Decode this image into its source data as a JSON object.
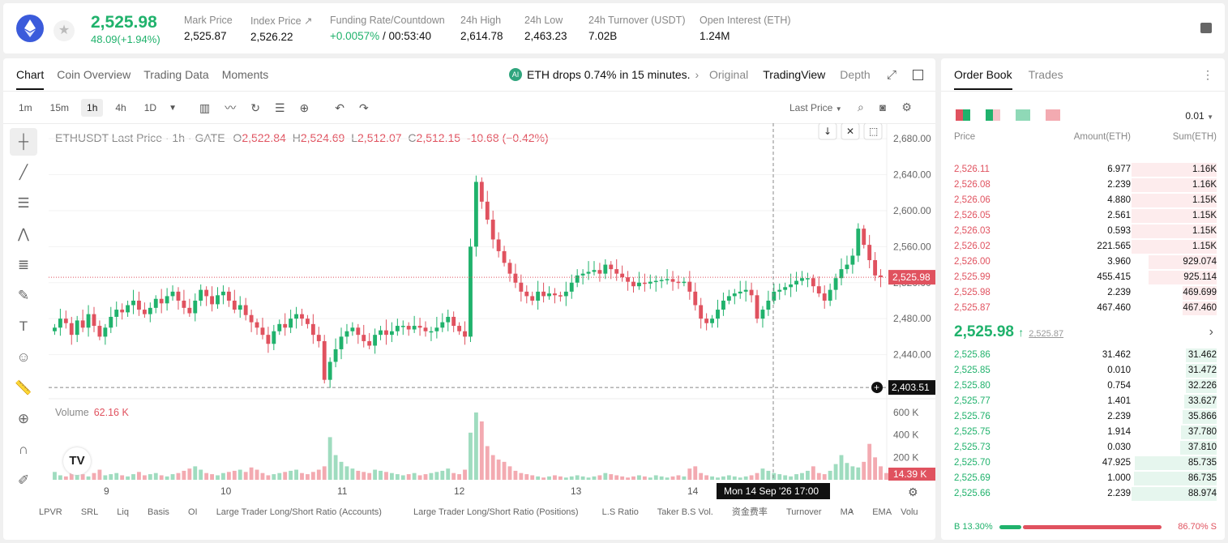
{
  "header": {
    "last_price": "2,525.98",
    "change": "48.09(+1.94%)",
    "stats": [
      {
        "label": "Mark Price",
        "value": "2,525.87"
      },
      {
        "label": "Index Price ↗",
        "value": "2,526.22"
      },
      {
        "label": "Funding Rate/Countdown",
        "value": "+0.0057%",
        "extra": " / 00:53:40"
      },
      {
        "label": "24h High",
        "value": "2,614.78"
      },
      {
        "label": "24h Low",
        "value": "2,463.23"
      },
      {
        "label": "24h Turnover (USDT)",
        "value": "7.02B"
      },
      {
        "label": "Open Interest (ETH)",
        "value": "1.24M"
      }
    ]
  },
  "chart_tabs": [
    "Chart",
    "Coin Overview",
    "Trading Data",
    "Moments"
  ],
  "news": "ETH drops 0.74% in 15 minutes.",
  "view_tabs": [
    "Original",
    "TradingView",
    "Depth"
  ],
  "timeframes": [
    "1m",
    "15m",
    "1h",
    "4h",
    "1D"
  ],
  "price_type": "Last Price",
  "ohlc": {
    "symbol": "ETHUSDT Last Price · 1h · GATE",
    "o": "2,522.84",
    "h": "2,524.69",
    "l": "2,512.07",
    "c": "2,512.15",
    "chg": "-10.68 (−0.42%)"
  },
  "volume": {
    "label": "Volume",
    "value": "62.16 K",
    "last": "14.39 K"
  },
  "crosshair": {
    "price": "2,403.51",
    "time": "Mon 14 Sep '26   17:00"
  },
  "current_price_label": "2,525.98",
  "indicators": [
    "LPVR",
    "SRL",
    "Liq",
    "Basis",
    "OI",
    "Large Trader Long/Short Ratio (Accounts)",
    "Large Trader Long/Short Ratio (Positions)",
    "L.S Ratio",
    "Taker B.S Vol.",
    "资金费率",
    "Turnover",
    "MA",
    "EMA",
    "Volu"
  ],
  "chart_data": {
    "type": "candlestick",
    "y_ticks": [
      "2,680.00",
      "2,640.00",
      "2,600.00",
      "2,560.00",
      "2,520.00",
      "2,480.00",
      "2,440.00"
    ],
    "vol_ticks": [
      "600 K",
      "400 K",
      "200 K"
    ],
    "x_ticks": [
      "9",
      "10",
      "11",
      "12",
      "13",
      "14"
    ],
    "ylim": [
      2400,
      2690
    ],
    "closes": [
      2470,
      2480,
      2475,
      2462,
      2478,
      2470,
      2485,
      2472,
      2460,
      2470,
      2482,
      2490,
      2487,
      2495,
      2500,
      2490,
      2485,
      2492,
      2502,
      2497,
      2505,
      2510,
      2500,
      2492,
      2486,
      2500,
      2512,
      2505,
      2496,
      2506,
      2510,
      2500,
      2490,
      2495,
      2484,
      2476,
      2470,
      2462,
      2452,
      2466,
      2474,
      2470,
      2480,
      2485,
      2480,
      2474,
      2462,
      2455,
      2412,
      2432,
      2446,
      2460,
      2466,
      2470,
      2462,
      2455,
      2450,
      2462,
      2467,
      2462,
      2466,
      2472,
      2472,
      2468,
      2472,
      2470,
      2466,
      2466,
      2470,
      2476,
      2482,
      2472,
      2466,
      2460,
      2560,
      2632,
      2610,
      2590,
      2568,
      2555,
      2542,
      2530,
      2520,
      2510,
      2505,
      2500,
      2510,
      2505,
      2508,
      2506,
      2505,
      2510,
      2520,
      2528,
      2530,
      2532,
      2534,
      2530,
      2540,
      2535,
      2530,
      2526,
      2521,
      2516,
      2520,
      2519,
      2521,
      2522,
      2523,
      2524,
      2521,
      2520,
      2521,
      2510,
      2495,
      2480,
      2475,
      2480,
      2490,
      2500,
      2505,
      2508,
      2510,
      2512,
      2506,
      2480,
      2490,
      2500,
      2510,
      2512,
      2515,
      2518,
      2522,
      2525,
      2525,
      2516,
      2508,
      2500,
      2512,
      2525,
      2535,
      2540,
      2550,
      2580,
      2562,
      2545,
      2528,
      2526
    ],
    "volumes": [
      70,
      40,
      30,
      60,
      80,
      50,
      30,
      60,
      90,
      40,
      50,
      60,
      40,
      30,
      50,
      70,
      40,
      50,
      60,
      40,
      30,
      50,
      60,
      80,
      100,
      120,
      90,
      60,
      50,
      40,
      60,
      70,
      80,
      90,
      70,
      110,
      90,
      60,
      40,
      50,
      60,
      70,
      80,
      90,
      60,
      50,
      70,
      90,
      120,
      380,
      220,
      160,
      120,
      100,
      80,
      70,
      60,
      90,
      80,
      70,
      60,
      50,
      40,
      50,
      60,
      40,
      50,
      60,
      70,
      80,
      100,
      60,
      50,
      90,
      420,
      600,
      520,
      300,
      220,
      180,
      160,
      120,
      80,
      60,
      50,
      40,
      30,
      20,
      30,
      40,
      30,
      20,
      30,
      40,
      30,
      20,
      30,
      40,
      60,
      50,
      40,
      30,
      20,
      30,
      40,
      30,
      20,
      40,
      30,
      20,
      30,
      40,
      30,
      100,
      120,
      60,
      40,
      30,
      20,
      30,
      40,
      30,
      20,
      30,
      40,
      60,
      100,
      80,
      60,
      50,
      40,
      30,
      50,
      60,
      80,
      120,
      60,
      50,
      80,
      140,
      220,
      150,
      120,
      110,
      160,
      320,
      200,
      120,
      60
    ]
  },
  "orderbook": {
    "tabs": [
      "Order Book",
      "Trades"
    ],
    "precision": "0.01",
    "headers": [
      "Price",
      "Amount(ETH)",
      "Sum(ETH)"
    ],
    "asks": [
      [
        "2,526.11",
        "6.977",
        "1.16K"
      ],
      [
        "2,526.08",
        "2.239",
        "1.16K"
      ],
      [
        "2,526.06",
        "4.880",
        "1.15K"
      ],
      [
        "2,526.05",
        "2.561",
        "1.15K"
      ],
      [
        "2,526.03",
        "0.593",
        "1.15K"
      ],
      [
        "2,526.02",
        "221.565",
        "1.15K"
      ],
      [
        "2,526.00",
        "3.960",
        "929.074"
      ],
      [
        "2,525.99",
        "455.415",
        "925.114"
      ],
      [
        "2,525.98",
        "2.239",
        "469.699"
      ],
      [
        "2,525.87",
        "467.460",
        "467.460"
      ]
    ],
    "ask_fill": [
      1,
      1,
      1,
      1,
      1,
      1,
      0.8,
      0.8,
      0.4,
      0.4
    ],
    "mid_price": "2,525.98",
    "mid_mark": "2,525.87",
    "bids": [
      [
        "2,525.86",
        "31.462",
        "31.462"
      ],
      [
        "2,525.85",
        "0.010",
        "31.472"
      ],
      [
        "2,525.80",
        "0.754",
        "32.226"
      ],
      [
        "2,525.77",
        "1.401",
        "33.627"
      ],
      [
        "2,525.76",
        "2.239",
        "35.866"
      ],
      [
        "2,525.75",
        "1.914",
        "37.780"
      ],
      [
        "2,525.73",
        "0.030",
        "37.810"
      ],
      [
        "2,525.70",
        "47.925",
        "85.735"
      ],
      [
        "2,525.69",
        "1.000",
        "86.735"
      ],
      [
        "2,525.66",
        "2.239",
        "88.974"
      ]
    ],
    "bid_fill": [
      0.36,
      0.36,
      0.36,
      0.38,
      0.4,
      0.42,
      0.43,
      0.96,
      0.97,
      1
    ],
    "buy_ratio": "B 13.30%",
    "sell_ratio": "86.70% S",
    "buy_fraction": 0.133
  },
  "colors": {
    "up": "#20b26c",
    "down": "#e0525f"
  }
}
